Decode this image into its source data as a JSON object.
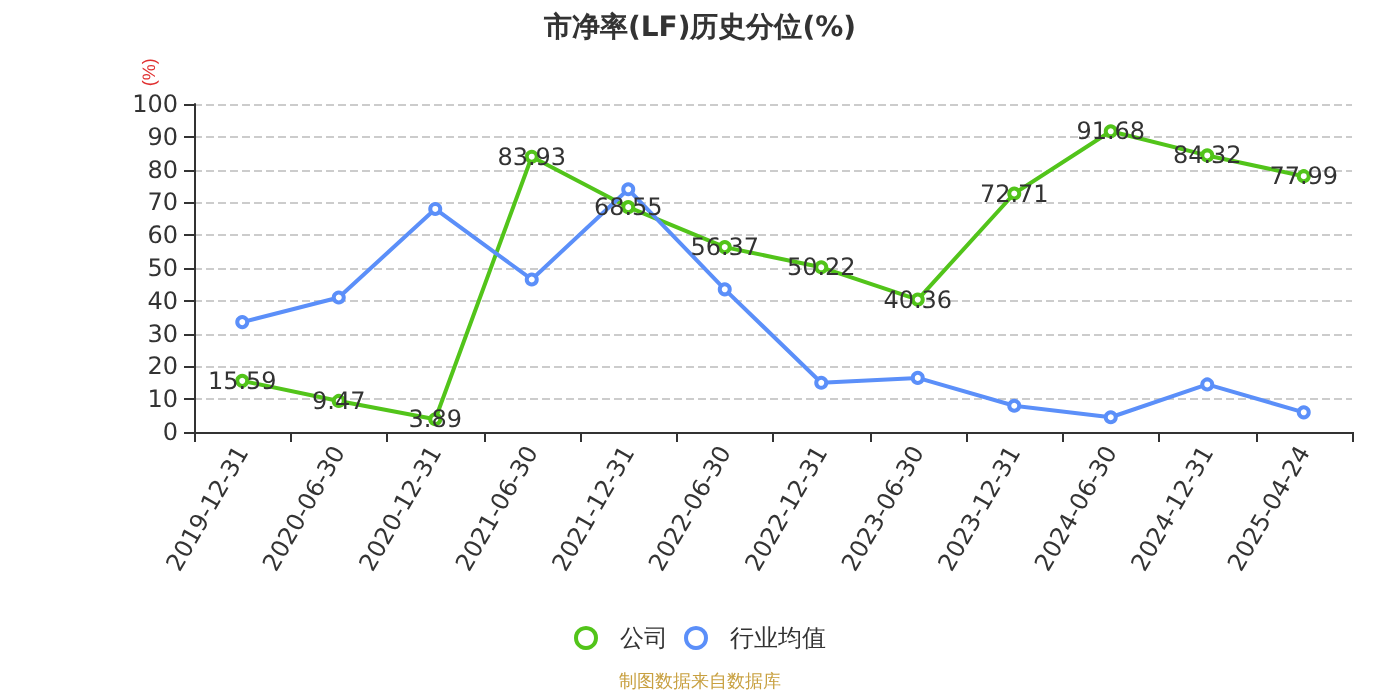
{
  "chart_data": {
    "type": "line",
    "title": "市净率(LF)历史分位(%)",
    "ylabel": "(%)",
    "categories": [
      "2019-12-31",
      "2020-06-30",
      "2020-12-31",
      "2021-06-30",
      "2021-12-31",
      "2022-06-30",
      "2022-12-31",
      "2023-06-30",
      "2023-12-31",
      "2024-06-30",
      "2024-12-31",
      "2025-04-24"
    ],
    "series": [
      {
        "name": "公司",
        "color": "#52c41a",
        "values": [
          15.59,
          9.47,
          3.89,
          83.93,
          68.55,
          56.37,
          50.22,
          40.36,
          72.71,
          91.68,
          84.32,
          77.99
        ],
        "data_labels": true
      },
      {
        "name": "行业均值",
        "color": "#5b8ff9",
        "values": [
          33.5,
          41,
          68,
          46.5,
          74,
          43.5,
          15,
          16.5,
          8,
          4.5,
          14.5,
          6
        ]
      }
    ],
    "ylim": [
      0,
      100
    ],
    "yticks": [
      0,
      10,
      20,
      30,
      40,
      50,
      60,
      70,
      80,
      90,
      100
    ],
    "grid": "y",
    "legend": "bottom",
    "marker": "circle",
    "annotations": [
      "制图数据来自数据库"
    ]
  }
}
